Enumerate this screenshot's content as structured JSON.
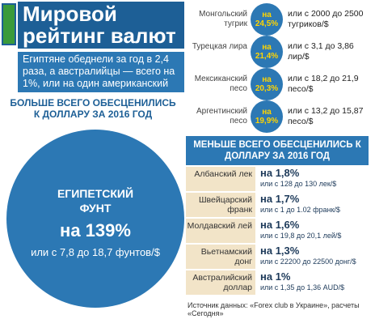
{
  "header": {
    "title": "Мировой рейтинг валют",
    "subtitle": "Египтяне обеднели за год в 2,4 раза, а австралийцы — всего на 1%, или на один американский цент"
  },
  "most": {
    "heading": "БОЛЬШЕ ВСЕГО ОБЕСЦЕНИЛИСЬ К ДОЛЛАРУ ЗА 2016 ГОД",
    "name": "ЕГИПЕТСКИЙ ФУНТ",
    "change": "на 139%",
    "detail": "или с  7,8 до 18,7 фунтов/$"
  },
  "others": [
    {
      "name": "Монгольский тугрик",
      "change": "на 24,5%",
      "detail": "или с 2000 до 2500 тугриков/$"
    },
    {
      "name": "Турецкая лира",
      "change": "на 21,4%",
      "detail": "или с 3,1 до 3,86 лир/$"
    },
    {
      "name": "Мексиканский песо",
      "change": "на 20,3%",
      "detail": "или с 18,2 до 21,9 песо/$"
    },
    {
      "name": "Аргентинский песо",
      "change": "на 19,9%",
      "detail": "или с 13,2 до 15,87 песо/$"
    }
  ],
  "least": {
    "heading": "МЕНЬШЕ ВСЕГО ОБЕСЦЕНИЛИСЬ К ДОЛЛАРУ ЗА 2016 ГОД",
    "rows": [
      {
        "name": "Албанский лек",
        "change": "на 1,8%",
        "detail": "или с 128 до 130 лек/$"
      },
      {
        "name": "Швейцарский франк",
        "change": "на 1,7%",
        "detail": "или с 1 до 1.02 франк/$"
      },
      {
        "name": "Молдавский лей",
        "change": "на 1,6%",
        "detail": "или с 19,8 до 20,1 лей/$"
      },
      {
        "name": "Вьетнамский донг",
        "change": "на 1,3%",
        "detail": "или с 22200 до 22500 донг/$"
      },
      {
        "name": "Австралийский доллар",
        "change": "на 1%",
        "detail": "или с 1,35 до 1,36 AUD/$"
      }
    ]
  },
  "source": "Источник данных: «Forex club в Украине», расчеты «Сегодня»"
}
